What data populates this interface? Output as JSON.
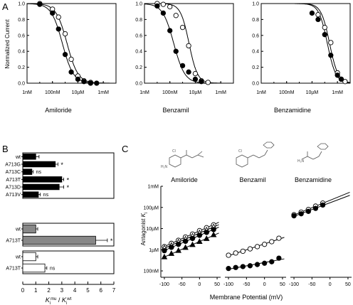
{
  "panel_labels": {
    "a": "A",
    "b": "B",
    "c": "C"
  },
  "chart_data": [
    {
      "id": "A1",
      "type": "scatter",
      "ylabel": "Normalized Current",
      "xlabel": "Amiloride",
      "xscale": "log",
      "xlim": [
        1e-09,
        0.01
      ],
      "ylim": [
        0,
        1
      ],
      "xticks": [
        "1nM",
        "100nM",
        "10µM",
        "1mM"
      ],
      "yticks": [
        "0.0",
        "0.2",
        "0.4",
        "0.6",
        "0.8",
        "1.0"
      ],
      "series": [
        {
          "marker": "filled-circle",
          "x": [
            1e-08,
            1e-07,
            3e-07,
            1e-06,
            3e-06,
            1e-05,
            3e-05,
            0.0001,
            0.0003
          ],
          "y": [
            0.99,
            0.88,
            0.68,
            0.36,
            0.14,
            0.05,
            0.02,
            0.0,
            0.0
          ],
          "ic50": 6e-07,
          "hill": 1.0
        },
        {
          "marker": "open-circle",
          "x": [
            1e-08,
            1e-07,
            3e-07,
            1e-06,
            3e-06,
            1e-05,
            3e-05,
            0.0001
          ],
          "y": [
            1.0,
            0.93,
            0.83,
            0.62,
            0.3,
            0.09,
            0.03,
            0.01
          ],
          "ic50": 1.4e-06,
          "hill": 1.0
        }
      ]
    },
    {
      "id": "A2",
      "type": "scatter",
      "xlabel": "Benzamil",
      "xscale": "log",
      "xlim": [
        1e-09,
        0.01
      ],
      "ylim": [
        0,
        1
      ],
      "xticks": [
        "1nM",
        "100nM",
        "10µM",
        "1mM"
      ],
      "yticks": [
        "0.0",
        "0.2",
        "0.4",
        "0.6",
        "0.8",
        "1.0"
      ],
      "series": [
        {
          "marker": "filled-circle",
          "x": [
            1e-08,
            3e-08,
            1e-07,
            3e-07,
            1e-06,
            3e-06,
            1e-05,
            3e-05
          ],
          "y": [
            0.97,
            0.88,
            0.66,
            0.4,
            0.22,
            0.14,
            0.05,
            0.02
          ],
          "ic50": 2e-07,
          "hill": 1.0
        },
        {
          "marker": "open-circle",
          "x": [
            1e-08,
            3e-08,
            1e-07,
            3e-07,
            1e-06,
            3e-06,
            1e-05,
            3e-05,
            0.0001
          ],
          "y": [
            1.0,
            0.99,
            0.96,
            0.85,
            0.7,
            0.47,
            0.12,
            0.03,
            0.01
          ],
          "ic50": 3.2e-06,
          "hill": 1.3
        }
      ]
    },
    {
      "id": "A3",
      "type": "scatter",
      "xlabel": "Benzamidine",
      "xscale": "log",
      "xlim": [
        1e-09,
        0.01
      ],
      "ylim": [
        0,
        1
      ],
      "xticks": [
        "1nM",
        "100nM",
        "10µM",
        "1mM"
      ],
      "yticks": [
        "0.0",
        "0.2",
        "0.4",
        "0.6",
        "0.8",
        "1.0"
      ],
      "series": [
        {
          "marker": "filled-circle",
          "x": [
            1e-05,
            3e-05,
            0.0001,
            0.0003,
            0.001,
            0.002
          ],
          "y": [
            0.88,
            0.8,
            0.61,
            0.35,
            0.1,
            0.05
          ],
          "ic50": 0.00016,
          "hill": 1.3
        },
        {
          "marker": "open-circle",
          "x": [
            3e-05,
            0.0001,
            0.0003,
            0.001,
            0.002,
            0.004
          ],
          "y": [
            0.86,
            0.7,
            0.51,
            0.13,
            0.05,
            0.02
          ],
          "ic50": 0.00024,
          "hill": 1.3
        }
      ]
    },
    {
      "id": "B",
      "type": "bar",
      "orientation": "horizontal",
      "xlabel_main": "K",
      "xlabel_sub1": "i",
      "xlabel_sup1": "mu",
      "xlabel_sep": " / ",
      "xlabel_sub2": "i",
      "xlabel_sup2": "wt",
      "xlim": [
        0,
        7
      ],
      "xticks": [
        "0",
        "1",
        "2",
        "3",
        "4",
        "5",
        "6",
        "7"
      ],
      "groups": [
        {
          "color": "#000000",
          "categories": [
            "wt",
            "A713G",
            "A713C",
            "A713T",
            "A713D",
            "A713V"
          ],
          "values": [
            1.0,
            2.5,
            0.7,
            3.0,
            2.8,
            1.2
          ],
          "errors": [
            0.25,
            0.2,
            0.1,
            0.15,
            0.35,
            0.15
          ],
          "marks": [
            "",
            "*",
            "ns",
            "*",
            "*",
            "ns"
          ]
        },
        {
          "color": "#888888",
          "categories": [
            "wt",
            "A713T"
          ],
          "values": [
            1.0,
            5.6
          ],
          "errors": [
            0.15,
            0.9
          ],
          "marks": [
            "",
            "*"
          ]
        },
        {
          "color": "#ffffff",
          "categories": [
            "wt",
            "A713T"
          ],
          "values": [
            1.0,
            1.7
          ],
          "errors": [
            0.15,
            0.15
          ],
          "marks": [
            "",
            "ns"
          ]
        }
      ]
    },
    {
      "id": "C",
      "type": "scatter",
      "yscale": "log",
      "ylabel_main": "Antagonist ",
      "ylabel_var": "K",
      "ylabel_sub": "i",
      "xlabel": "Membrane Potential (mV)",
      "ylim": [
        5e-08,
        0.001
      ],
      "yticks": [
        "100nM",
        "1µM",
        "10µM",
        "100µM",
        "1mM"
      ],
      "compound_names": [
        "Amiloride",
        "Benzamil",
        "Benzamidine"
      ],
      "subpanels": [
        {
          "name": "Amiloride",
          "xlim": [
            -110,
            60
          ],
          "xticks": [
            "-100",
            "-50",
            "0",
            "50"
          ],
          "series": [
            {
              "marker": "open-circle",
              "x": [
                -100,
                -80,
                -60,
                -40,
                -20,
                0,
                20,
                40
              ],
              "y": [
                1.4e-06,
                2e-06,
                2.8e-06,
                4e-06,
                5.5e-06,
                8e-06,
                1.1e-05,
                1.5e-05
              ]
            },
            {
              "marker": "open-triangle",
              "x": [
                -100,
                -80,
                -60,
                -40,
                -20,
                0,
                20,
                40
              ],
              "y": [
                1.2e-06,
                1.6e-06,
                2.3e-06,
                3.2e-06,
                4.4e-06,
                6.2e-06,
                8.5e-06,
                1.2e-05
              ]
            },
            {
              "marker": "filled-circle",
              "x": [
                -100,
                -80,
                -60,
                -40,
                -20,
                0,
                20,
                40
              ],
              "y": [
                9e-07,
                1.3e-06,
                1.8e-06,
                2.5e-06,
                3.4e-06,
                4.8e-06,
                6.6e-06,
                9e-06
              ]
            },
            {
              "marker": "filled-triangle",
              "x": [
                -100,
                -80,
                -60,
                -40,
                -20,
                0,
                20,
                40
              ],
              "y": [
                4.5e-07,
                6.5e-07,
                9e-07,
                1.25e-06,
                1.7e-06,
                2.4e-06,
                3.3e-06,
                5e-06
              ]
            }
          ]
        },
        {
          "name": "Benzamil",
          "xlim": [
            -110,
            60
          ],
          "xticks": [
            "-100",
            "-50",
            "0",
            "50"
          ],
          "series": [
            {
              "marker": "open-circle",
              "x": [
                -100,
                -80,
                -60,
                -40,
                -20,
                0,
                20,
                40
              ],
              "y": [
                5.5e-07,
                7e-07,
                8.5e-07,
                1.1e-06,
                1.4e-06,
                1.8e-06,
                2.4e-06,
                3.5e-06
              ]
            },
            {
              "marker": "filled-circle",
              "x": [
                -100,
                -80,
                -60,
                -40,
                -20,
                0,
                20,
                40
              ],
              "y": [
                1.3e-07,
                1.45e-07,
                1.6e-07,
                1.75e-07,
                2e-07,
                2.3e-07,
                2.7e-07,
                4e-07
              ]
            }
          ]
        },
        {
          "name": "Benzamidine",
          "xlim": [
            -110,
            60
          ],
          "xticks": [
            "-100",
            "-50",
            "0",
            "50"
          ],
          "series": [
            {
              "marker": "open-circle",
              "x": [
                -100,
                -80,
                -60,
                -40,
                -20
              ],
              "y": [
                4.5e-05,
                6e-05,
                8e-05,
                0.000115,
                0.00016
              ]
            },
            {
              "marker": "filled-circle",
              "x": [
                -100,
                -80,
                -60,
                -40,
                -20
              ],
              "y": [
                4e-05,
                5e-05,
                6.5e-05,
                9e-05,
                0.00013
              ]
            }
          ]
        }
      ]
    }
  ]
}
